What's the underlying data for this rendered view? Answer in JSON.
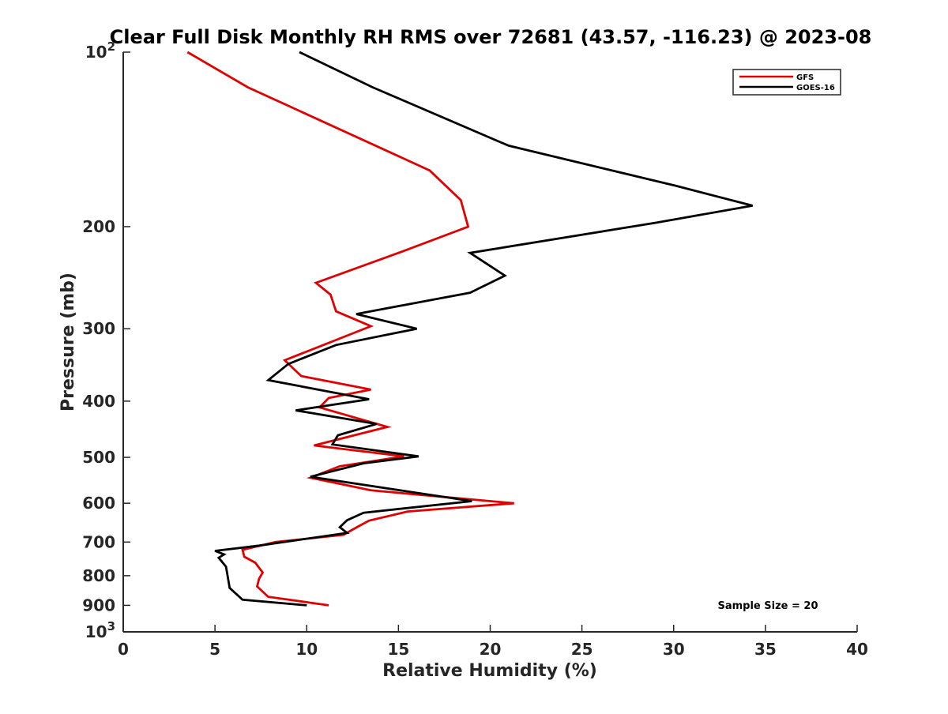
{
  "chart_data": {
    "type": "line",
    "title": "Clear Full Disk Monthly RH RMS over 72681 (43.57, -116.23) @ 2023-08",
    "xlabel": "Relative Humidity (%)",
    "ylabel": "Pressure (mb)",
    "xlim": [
      0,
      40
    ],
    "ylim": [
      100,
      1000
    ],
    "yscale": "log",
    "y_reversed": true,
    "x_ticks": [
      0,
      5,
      10,
      15,
      20,
      25,
      30,
      35,
      40
    ],
    "x_tick_labels": [
      "0",
      "5",
      "10",
      "15",
      "20",
      "25",
      "30",
      "35",
      "40"
    ],
    "y_ticks": [
      {
        "value": 100,
        "base": "10",
        "exp": "2"
      },
      {
        "value": 200,
        "label": "200"
      },
      {
        "value": 300,
        "label": "300"
      },
      {
        "value": 400,
        "label": "400"
      },
      {
        "value": 500,
        "label": "500"
      },
      {
        "value": 600,
        "label": "600"
      },
      {
        "value": 700,
        "label": "700"
      },
      {
        "value": 800,
        "label": "800"
      },
      {
        "value": 900,
        "label": "900"
      },
      {
        "value": 1000,
        "base": "10",
        "exp": "3"
      }
    ],
    "legend_position": "top-right",
    "annotation": "Sample Size = 20",
    "series": [
      {
        "name": "GFS",
        "color": "#e00000",
        "points": [
          [
            3.5,
            100
          ],
          [
            6.8,
            115
          ],
          [
            16.7,
            160
          ],
          [
            18.4,
            180
          ],
          [
            18.8,
            200
          ],
          [
            15.0,
            222
          ],
          [
            10.5,
            250
          ],
          [
            11.3,
            262
          ],
          [
            11.6,
            280
          ],
          [
            13.5,
            297
          ],
          [
            8.8,
            340
          ],
          [
            9.7,
            362
          ],
          [
            13.5,
            382
          ],
          [
            11.2,
            395
          ],
          [
            10.7,
            410
          ],
          [
            14.4,
            443
          ],
          [
            10.4,
            477
          ],
          [
            15.3,
            498
          ],
          [
            11.8,
            518
          ],
          [
            10.2,
            542
          ],
          [
            13.5,
            570
          ],
          [
            21.3,
            600
          ],
          [
            15.5,
            620
          ],
          [
            13.4,
            643
          ],
          [
            12.8,
            658
          ],
          [
            12.0,
            680
          ],
          [
            8.3,
            700
          ],
          [
            6.5,
            722
          ],
          [
            6.6,
            742
          ],
          [
            7.2,
            760
          ],
          [
            7.6,
            790
          ],
          [
            7.4,
            810
          ],
          [
            7.3,
            835
          ],
          [
            7.9,
            870
          ],
          [
            11.2,
            900
          ]
        ]
      },
      {
        "name": "GOES-16",
        "color": "#000000",
        "points": [
          [
            9.6,
            100
          ],
          [
            13.6,
            115
          ],
          [
            21.0,
            145
          ],
          [
            30.1,
            170
          ],
          [
            34.3,
            184
          ],
          [
            29.0,
            197
          ],
          [
            18.9,
            222
          ],
          [
            20.8,
            243
          ],
          [
            18.9,
            260
          ],
          [
            12.7,
            283
          ],
          [
            16.0,
            300
          ],
          [
            11.6,
            320
          ],
          [
            9.0,
            345
          ],
          [
            7.9,
            368
          ],
          [
            13.4,
            397
          ],
          [
            9.4,
            415
          ],
          [
            13.8,
            438
          ],
          [
            11.7,
            458
          ],
          [
            11.4,
            475
          ],
          [
            16.1,
            498
          ],
          [
            13.1,
            512
          ],
          [
            10.2,
            540
          ],
          [
            19.0,
            595
          ],
          [
            13.1,
            623
          ],
          [
            12.2,
            642
          ],
          [
            11.8,
            660
          ],
          [
            12.2,
            675
          ],
          [
            7.4,
            710
          ],
          [
            5.0,
            725
          ],
          [
            5.5,
            735
          ],
          [
            5.2,
            745
          ],
          [
            5.6,
            772
          ],
          [
            5.7,
            805
          ],
          [
            5.8,
            840
          ],
          [
            6.5,
            880
          ],
          [
            10.0,
            900
          ]
        ]
      }
    ]
  }
}
